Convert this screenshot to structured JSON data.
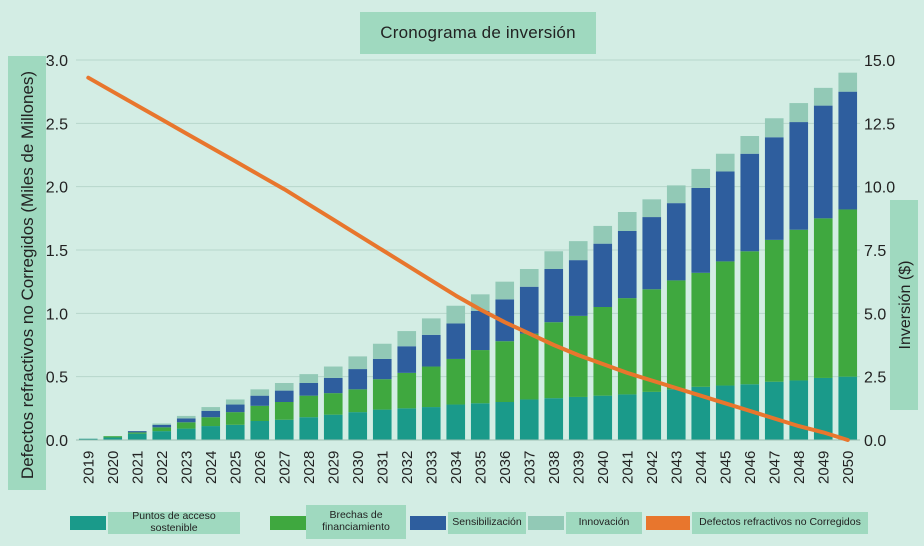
{
  "chart_data": {
    "type": "bar",
    "stacked": true,
    "title": "Cronograma de inversión",
    "ylabel_left": "Defectos refractivos no Corregidos (Miles de Millones)",
    "ylabel_right": "Inversión ($)",
    "ylim_left": [
      0,
      3.0
    ],
    "ylim_right": [
      0,
      15.0
    ],
    "yticks_left": [
      "0.0",
      "0.5",
      "1.0",
      "1.5",
      "2.0",
      "2.5",
      "3.0"
    ],
    "yticks_right": [
      "0.0",
      "2.5",
      "5.0",
      "7.5",
      "10.0",
      "12.5",
      "15.0"
    ],
    "categories": [
      "2019",
      "2020",
      "2021",
      "2022",
      "2023",
      "2024",
      "2025",
      "2026",
      "2027",
      "2028",
      "2029",
      "2030",
      "2031",
      "2032",
      "2033",
      "2034",
      "2035",
      "2036",
      "2037",
      "2038",
      "2039",
      "2040",
      "2041",
      "2042",
      "2043",
      "2044",
      "2045",
      "2046",
      "2047",
      "2048",
      "2049",
      "2050"
    ],
    "series": [
      {
        "name": "Puntos de acceso sostenible",
        "color": "#1a9a8a",
        "axis": "right",
        "values": [
          0.05,
          0.1,
          0.25,
          0.35,
          0.45,
          0.55,
          0.6,
          0.75,
          0.8,
          0.9,
          1.0,
          1.1,
          1.2,
          1.25,
          1.3,
          1.4,
          1.45,
          1.5,
          1.6,
          1.65,
          1.7,
          1.75,
          1.8,
          1.9,
          2.0,
          2.1,
          2.15,
          2.2,
          2.3,
          2.35,
          2.45,
          2.5
        ]
      },
      {
        "name": "Brechas de financiamiento",
        "color": "#3fa83f",
        "axis": "right",
        "values": [
          0.0,
          0.05,
          0.05,
          0.15,
          0.25,
          0.35,
          0.5,
          0.6,
          0.7,
          0.85,
          0.85,
          0.9,
          1.2,
          1.4,
          1.6,
          1.8,
          2.1,
          2.4,
          2.6,
          3.0,
          3.2,
          3.5,
          3.8,
          4.05,
          4.3,
          4.5,
          4.9,
          5.25,
          5.6,
          5.95,
          6.3,
          6.6
        ]
      },
      {
        "name": "Sensibilización",
        "color": "#2e5e9e",
        "axis": "right",
        "values": [
          0.0,
          0.0,
          0.05,
          0.1,
          0.15,
          0.25,
          0.3,
          0.4,
          0.45,
          0.5,
          0.6,
          0.8,
          0.8,
          1.05,
          1.25,
          1.4,
          1.55,
          1.65,
          1.85,
          2.1,
          2.2,
          2.5,
          2.65,
          2.85,
          3.05,
          3.35,
          3.55,
          3.85,
          4.05,
          4.25,
          4.45,
          4.65
        ]
      },
      {
        "name": "Innovación",
        "color": "#92c9b6",
        "axis": "right",
        "values": [
          0.0,
          0.0,
          0.0,
          0.05,
          0.1,
          0.15,
          0.2,
          0.25,
          0.3,
          0.35,
          0.45,
          0.5,
          0.6,
          0.6,
          0.65,
          0.7,
          0.65,
          0.7,
          0.7,
          0.7,
          0.75,
          0.7,
          0.75,
          0.7,
          0.7,
          0.75,
          0.7,
          0.7,
          0.75,
          0.75,
          0.7,
          0.75
        ]
      }
    ],
    "line": {
      "name": "Defectos refractivos no Corregidos",
      "color": "#e8762d",
      "axis": "left",
      "values": [
        2.86,
        2.75,
        2.64,
        2.53,
        2.42,
        2.31,
        2.2,
        2.09,
        1.98,
        1.86,
        1.74,
        1.62,
        1.5,
        1.38,
        1.26,
        1.14,
        1.03,
        0.93,
        0.84,
        0.75,
        0.67,
        0.6,
        0.53,
        0.47,
        0.41,
        0.35,
        0.29,
        0.23,
        0.17,
        0.11,
        0.06,
        0.0
      ]
    },
    "legend_position": "bottom"
  }
}
